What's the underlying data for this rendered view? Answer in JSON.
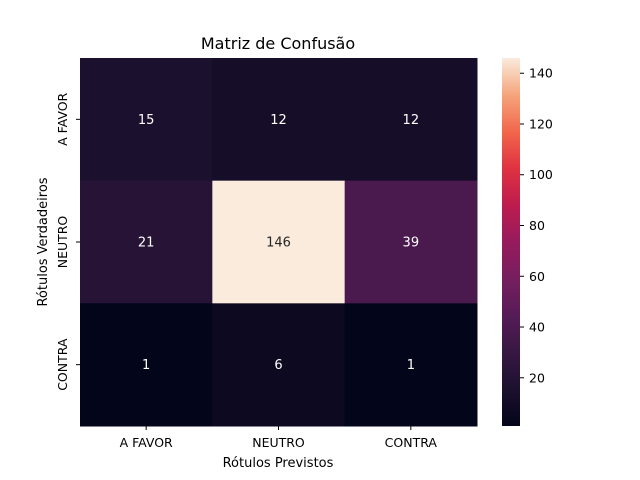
{
  "chart_data": {
    "type": "heatmap",
    "title": "Matriz de Confusão",
    "xlabel": "Rótulos Previstos",
    "ylabel": "Rótulos Verdadeiros",
    "x_categories": [
      "A FAVOR",
      "NEUTRO",
      "CONTRA"
    ],
    "y_categories": [
      "A FAVOR",
      "NEUTRO",
      "CONTRA"
    ],
    "values": [
      [
        15,
        12,
        12
      ],
      [
        21,
        146,
        39
      ],
      [
        1,
        6,
        1
      ]
    ],
    "colorbar": {
      "min": 1,
      "max": 146,
      "ticks": [
        20,
        40,
        60,
        80,
        100,
        120,
        140
      ],
      "colormap": "rocket"
    }
  }
}
